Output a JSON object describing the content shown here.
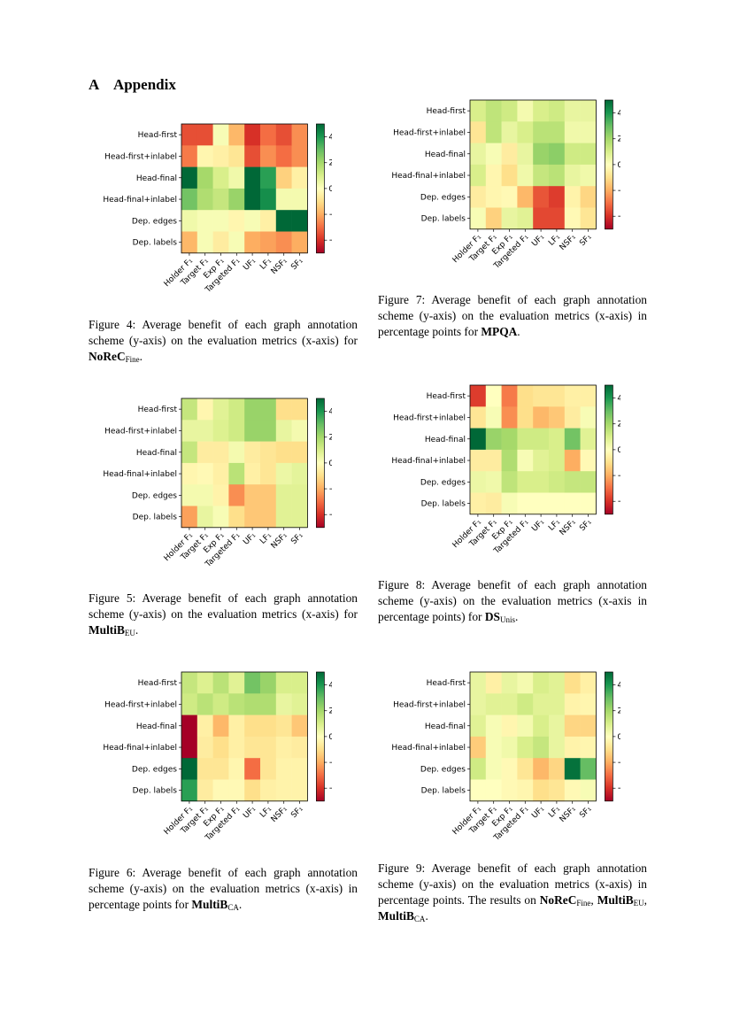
{
  "section": {
    "number": "A",
    "title": "Appendix"
  },
  "shared": {
    "row_labels": [
      "Head-first",
      "Head-first+inlabel",
      "Head-final",
      "Head-final+inlabel",
      "Dep. edges",
      "Dep. labels"
    ],
    "col_labels": [
      "Holder F₁",
      "Target F₁",
      "Exp F₁",
      "Targeted F₁",
      "UF₁",
      "LF₁",
      "NSF₁",
      "SF₁"
    ],
    "colorbar": {
      "vmin": -5,
      "vmax": 5,
      "ticks": [
        4,
        2,
        0,
        -2,
        -4
      ],
      "tick_labels": [
        "4",
        "2",
        "0",
        "−2",
        "−4"
      ],
      "colormap": "RdYlGn"
    }
  },
  "figures": [
    {
      "id": "fig4",
      "caption": {
        "prefix": "Figure 4:",
        "text": "Average benefit of each graph annotation scheme (y-axis) on the evaluation metrics (x-axis) for",
        "dataset": "NoReC",
        "dataset_sub": "Fine",
        "suffix": "."
      },
      "chart_data": {
        "type": "heatmap",
        "title": "",
        "xlabel": "",
        "ylabel": "",
        "rows": [
          "Head-first",
          "Head-first+inlabel",
          "Head-final",
          "Head-final+inlabel",
          "Dep. edges",
          "Dep. labels"
        ],
        "cols": [
          "Holder F₁",
          "Target F₁",
          "Exp F₁",
          "Targeted F₁",
          "UF₁",
          "LF₁",
          "NSF₁",
          "SF₁"
        ],
        "values": [
          [
            -3.5,
            -3.5,
            0.2,
            -1.8,
            -4.0,
            -3.0,
            -3.5,
            -2.5
          ],
          [
            -2.8,
            -0.3,
            -0.5,
            -0.8,
            -3.5,
            -2.5,
            -3.0,
            -2.5
          ],
          [
            5.5,
            2.0,
            1.0,
            0.4,
            5.5,
            3.8,
            -1.3,
            -0.5
          ],
          [
            2.8,
            1.8,
            1.4,
            2.2,
            5.0,
            4.2,
            0.3,
            0.3
          ],
          [
            0.4,
            0.2,
            0.2,
            -0.3,
            0.2,
            -0.5,
            5.5,
            5.5
          ],
          [
            -1.8,
            0.2,
            -0.6,
            0.2,
            -2.0,
            -2.2,
            -2.5,
            -2.0
          ]
        ],
        "colorbar_range": [
          -5,
          5
        ]
      }
    },
    {
      "id": "fig7",
      "caption": {
        "prefix": "Figure 7:",
        "text": "Average benefit of each graph annotation scheme (y-axis) on the evaluation metrics (x-axis) in percentage points for",
        "dataset": "MPQA",
        "dataset_sub": "",
        "suffix": "."
      },
      "chart_data": {
        "type": "heatmap",
        "title": "",
        "xlabel": "",
        "ylabel": "",
        "rows": [
          "Head-first",
          "Head-first+inlabel",
          "Head-final",
          "Head-final+inlabel",
          "Dep. edges",
          "Dep. labels"
        ],
        "cols": [
          "Holder F₁",
          "Target F₁",
          "Exp F₁",
          "Targeted F₁",
          "UF₁",
          "LF₁",
          "NSF₁",
          "SF₁"
        ],
        "values": [
          [
            1.0,
            1.5,
            1.2,
            0.3,
            1.0,
            1.2,
            0.6,
            0.6
          ],
          [
            -0.8,
            1.5,
            0.6,
            1.0,
            1.6,
            1.6,
            0.4,
            0.4
          ],
          [
            0.6,
            0.2,
            -0.6,
            0.6,
            2.2,
            2.4,
            1.2,
            1.2
          ],
          [
            1.0,
            -0.3,
            -1.0,
            0.4,
            1.4,
            1.6,
            0.6,
            0.4
          ],
          [
            -0.6,
            -0.3,
            -0.2,
            -1.8,
            -3.4,
            -3.8,
            -0.4,
            -1.2
          ],
          [
            0.2,
            -1.3,
            0.6,
            0.8,
            -3.6,
            -3.6,
            -0.2,
            -0.8
          ]
        ],
        "colorbar_range": [
          -5,
          5
        ]
      }
    },
    {
      "id": "fig5",
      "caption": {
        "prefix": "Figure 5:",
        "text": "Average benefit of each graph annotation scheme (y-axis) on the evaluation metrics (x-axis) for",
        "dataset": "MultiB",
        "dataset_sub": "EU",
        "suffix": "."
      },
      "chart_data": {
        "type": "heatmap",
        "title": "",
        "xlabel": "",
        "ylabel": "",
        "rows": [
          "Head-first",
          "Head-first+inlabel",
          "Head-final",
          "Head-final+inlabel",
          "Dep. edges",
          "Dep. labels"
        ],
        "cols": [
          "Holder F₁",
          "Target F₁",
          "Exp F₁",
          "Targeted F₁",
          "UF₁",
          "LF₁",
          "NSF₁",
          "SF₁"
        ],
        "values": [
          [
            1.4,
            -0.3,
            0.8,
            1.2,
            2.2,
            2.2,
            -1.0,
            -1.0
          ],
          [
            0.6,
            0.6,
            0.9,
            1.2,
            2.2,
            2.2,
            0.6,
            0.3
          ],
          [
            1.4,
            -0.6,
            -0.6,
            0.3,
            -0.6,
            -0.8,
            -1.0,
            -1.0
          ],
          [
            -0.3,
            -0.2,
            -0.5,
            1.6,
            -0.5,
            -0.8,
            0.5,
            0.7
          ],
          [
            0.3,
            0.3,
            -0.4,
            -2.5,
            -1.5,
            -1.5,
            0.8,
            0.8
          ],
          [
            -2.2,
            0.6,
            0.2,
            -1.0,
            -1.5,
            -1.5,
            0.8,
            0.8
          ]
        ],
        "colorbar_range": [
          -5,
          5
        ]
      }
    },
    {
      "id": "fig8",
      "caption": {
        "prefix": "Figure 8:",
        "text": "Average benefit of each graph annotation scheme (y-axis) on the evaluation metrics (x-axis in percentage points) for",
        "dataset": "DS",
        "dataset_sub": "Unis",
        "suffix": "."
      },
      "chart_data": {
        "type": "heatmap",
        "title": "",
        "xlabel": "",
        "ylabel": "",
        "rows": [
          "Head-first",
          "Head-first+inlabel",
          "Head-final",
          "Head-final+inlabel",
          "Dep. edges",
          "Dep. labels"
        ],
        "cols": [
          "Holder F₁",
          "Target F₁",
          "Exp F₁",
          "Targeted F₁",
          "UF₁",
          "LF₁",
          "NSF₁",
          "SF₁"
        ],
        "values": [
          [
            -3.8,
            0.0,
            -2.8,
            -1.0,
            -0.8,
            -0.8,
            -0.5,
            -0.5
          ],
          [
            -0.8,
            0.2,
            -2.5,
            -1.0,
            -1.8,
            -1.5,
            -0.6,
            0.2
          ],
          [
            5.5,
            2.2,
            2.0,
            1.2,
            1.2,
            1.0,
            2.8,
            0.8
          ],
          [
            -0.6,
            -0.6,
            1.8,
            0.2,
            0.8,
            1.0,
            -2.0,
            -0.2
          ],
          [
            0.5,
            0.4,
            1.5,
            1.0,
            1.0,
            1.2,
            1.4,
            1.4
          ],
          [
            -0.5,
            -0.6,
            0.2,
            0.0,
            0.0,
            0.0,
            0.0,
            0.0
          ]
        ],
        "colorbar_range": [
          -5,
          5
        ]
      }
    },
    {
      "id": "fig6",
      "caption": {
        "prefix": "Figure 6:",
        "text": "Average benefit of each graph annotation scheme (y-axis) on the evaluation metrics (x-axis) in percentage points for",
        "dataset": "MultiB",
        "dataset_sub": "CA",
        "suffix": "."
      },
      "chart_data": {
        "type": "heatmap",
        "title": "",
        "xlabel": "",
        "ylabel": "",
        "rows": [
          "Head-first",
          "Head-first+inlabel",
          "Head-final",
          "Head-final+inlabel",
          "Dep. edges",
          "Dep. labels"
        ],
        "cols": [
          "Holder F₁",
          "Target F₁",
          "Exp F₁",
          "Targeted F₁",
          "UF₁",
          "LF₁",
          "NSF₁",
          "SF₁"
        ],
        "values": [
          [
            1.4,
            0.9,
            1.6,
            0.8,
            2.8,
            2.2,
            1.0,
            1.0
          ],
          [
            1.2,
            1.6,
            1.2,
            1.6,
            1.8,
            1.8,
            0.6,
            0.8
          ],
          [
            -5.5,
            -0.5,
            -1.8,
            -0.5,
            -1.0,
            -1.0,
            -0.8,
            -1.5
          ],
          [
            -5.5,
            -0.6,
            -1.0,
            -0.5,
            -0.8,
            -0.8,
            -0.5,
            -0.6
          ],
          [
            5.0,
            -0.8,
            -0.8,
            -0.3,
            -3.0,
            -0.8,
            -0.4,
            -0.4
          ],
          [
            3.8,
            -0.6,
            -0.2,
            -0.2,
            -1.0,
            -0.5,
            -0.4,
            -0.4
          ]
        ],
        "colorbar_range": [
          -5,
          5
        ]
      }
    },
    {
      "id": "fig9",
      "caption": {
        "prefix": "Figure 9:",
        "text": "Average benefit of each graph annotation scheme (y-axis) on the evaluation metrics (x-axis) in percentage points. The results on",
        "datasets": [
          {
            "name": "NoReC",
            "sub": "Fine",
            "sep": ", "
          },
          {
            "name": "MultiB",
            "sub": "EU",
            "sep": ", "
          },
          {
            "name": "MultiB",
            "sub": "CA",
            "sep": "."
          }
        ]
      },
      "chart_data": {
        "type": "heatmap",
        "title": "",
        "xlabel": "",
        "ylabel": "",
        "rows": [
          "Head-first",
          "Head-first+inlabel",
          "Head-final",
          "Head-final+inlabel",
          "Dep. edges",
          "Dep. labels"
        ],
        "cols": [
          "Holder F₁",
          "Target F₁",
          "Exp F₁",
          "Targeted F₁",
          "UF₁",
          "LF₁",
          "NSF₁",
          "SF₁"
        ],
        "values": [
          [
            0.6,
            -0.5,
            0.6,
            0.3,
            1.0,
            0.8,
            -1.0,
            -0.5
          ],
          [
            0.6,
            0.8,
            0.8,
            1.2,
            0.8,
            0.8,
            -0.4,
            -0.3
          ],
          [
            0.8,
            0.2,
            -0.3,
            0.3,
            1.0,
            0.6,
            -1.2,
            -1.2
          ],
          [
            -1.4,
            0.2,
            0.4,
            1.0,
            1.4,
            0.6,
            -0.4,
            -0.3
          ],
          [
            1.2,
            0.2,
            -0.2,
            -0.8,
            -1.8,
            -1.2,
            4.8,
            3.0
          ],
          [
            0.0,
            0.0,
            -0.2,
            -0.3,
            -1.0,
            -0.8,
            -0.2,
            0.2
          ]
        ],
        "colorbar_range": [
          -5,
          5
        ]
      }
    }
  ]
}
